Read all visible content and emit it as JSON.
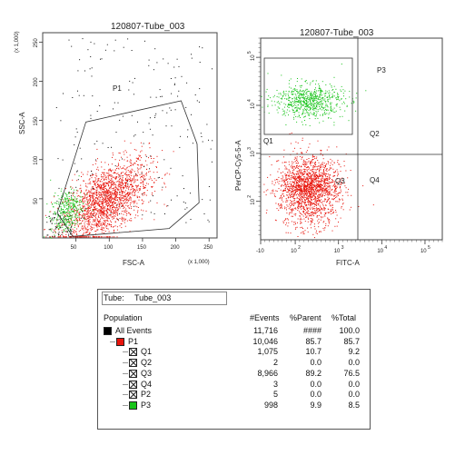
{
  "plots": [
    {
      "title": "120807-Tube_003",
      "x_axis": {
        "label": "FSC-A",
        "scale_note": "(x 1,000)",
        "ticks": [
          "50",
          "100",
          "150",
          "200",
          "250"
        ]
      },
      "y_axis": {
        "label": "SSC-A",
        "scale_note": "(x 1,000)",
        "ticks": [
          "50",
          "100",
          "150",
          "200",
          "250"
        ]
      },
      "gates": [
        "P1"
      ]
    },
    {
      "title": "120807-Tube_003",
      "x_axis": {
        "label": "FITC-A",
        "ticks": [
          "-10",
          "10",
          "10",
          "10",
          "10"
        ],
        "tick_exponents": [
          "",
          "2",
          "3",
          "4",
          "5"
        ]
      },
      "y_axis": {
        "label": "PerCP-Cy5-5-A",
        "ticks": [
          "10",
          "10",
          "10",
          "10"
        ],
        "tick_exponents": [
          "2",
          "3",
          "4",
          "5"
        ]
      },
      "gates": [
        "P3",
        "Q1",
        "Q2",
        "Q3",
        "Q4"
      ]
    }
  ],
  "chart_data": [
    {
      "type": "scatter",
      "title": "120807-Tube_003",
      "xlabel": "FSC-A (x 1,000)",
      "ylabel": "SSC-A (x 1,000)",
      "xlim": [
        0,
        262
      ],
      "ylim": [
        0,
        262
      ],
      "series": [
        {
          "name": "P1",
          "color": "#e8140c",
          "center": [
            95,
            48
          ],
          "spread": [
            32,
            22
          ],
          "count": 1900
        },
        {
          "name": "P3",
          "color": "#18c41a",
          "center": [
            35,
            28
          ],
          "spread": [
            12,
            14
          ],
          "count": 350
        },
        {
          "name": "",
          "color": "#111111",
          "center": [
            120,
            130
          ],
          "spread": [
            70,
            70
          ],
          "count": 260
        }
      ],
      "gate_polygon": [
        [
          22,
          32
        ],
        [
          65,
          148
        ],
        [
          208,
          175
        ],
        [
          232,
          120
        ],
        [
          235,
          45
        ],
        [
          190,
          12
        ],
        [
          90,
          5
        ],
        [
          45,
          2
        ]
      ]
    },
    {
      "type": "scatter",
      "title": "120807-Tube_003",
      "xlabel": "FITC-A",
      "ylabel": "PerCP-Cy5-5-A",
      "x_scale": "log",
      "y_scale": "log",
      "series": [
        {
          "name": "P3",
          "color": "#18c41a",
          "center_log": [
            2.3,
            4.1
          ],
          "spread_log": [
            0.4,
            0.18
          ],
          "count": 700
        },
        {
          "name": "Q3",
          "color": "#e8140c",
          "center_log": [
            2.3,
            2.3
          ],
          "spread_log": [
            0.35,
            0.4
          ],
          "count": 1900
        }
      ],
      "quadrant_x_log": 3.4,
      "quadrant_y_log": 3.4
    }
  ],
  "stats": {
    "tube_label": "Tube:",
    "tube_value": "Tube_003",
    "headers": {
      "population": "Population",
      "events": "#Events",
      "parent": "%Parent",
      "total": "%Total"
    },
    "rows": [
      {
        "name": "All Events",
        "events": "11,716",
        "parent": "####",
        "total": "100.0",
        "color": "#000000",
        "indent": 0,
        "box": "fill"
      },
      {
        "name": "P1",
        "events": "10,046",
        "parent": "85.7",
        "total": "85.7",
        "color": "#e8140c",
        "indent": 1,
        "box": "fill"
      },
      {
        "name": "Q1",
        "events": "1,075",
        "parent": "10.7",
        "total": "9.2",
        "color": "#ffffff",
        "indent": 2,
        "box": "x"
      },
      {
        "name": "Q2",
        "events": "2",
        "parent": "0.0",
        "total": "0.0",
        "color": "#ffffff",
        "indent": 2,
        "box": "x"
      },
      {
        "name": "Q3",
        "events": "8,966",
        "parent": "89.2",
        "total": "76.5",
        "color": "#ffffff",
        "indent": 2,
        "box": "x"
      },
      {
        "name": "Q4",
        "events": "3",
        "parent": "0.0",
        "total": "0.0",
        "color": "#ffffff",
        "indent": 2,
        "box": "x"
      },
      {
        "name": "P2",
        "events": "5",
        "parent": "0.0",
        "total": "0.0",
        "color": "#ffffff",
        "indent": 2,
        "box": "x"
      },
      {
        "name": "P3",
        "events": "998",
        "parent": "9.9",
        "total": "8.5",
        "color": "#18c41a",
        "indent": 2,
        "box": "fill"
      }
    ]
  }
}
